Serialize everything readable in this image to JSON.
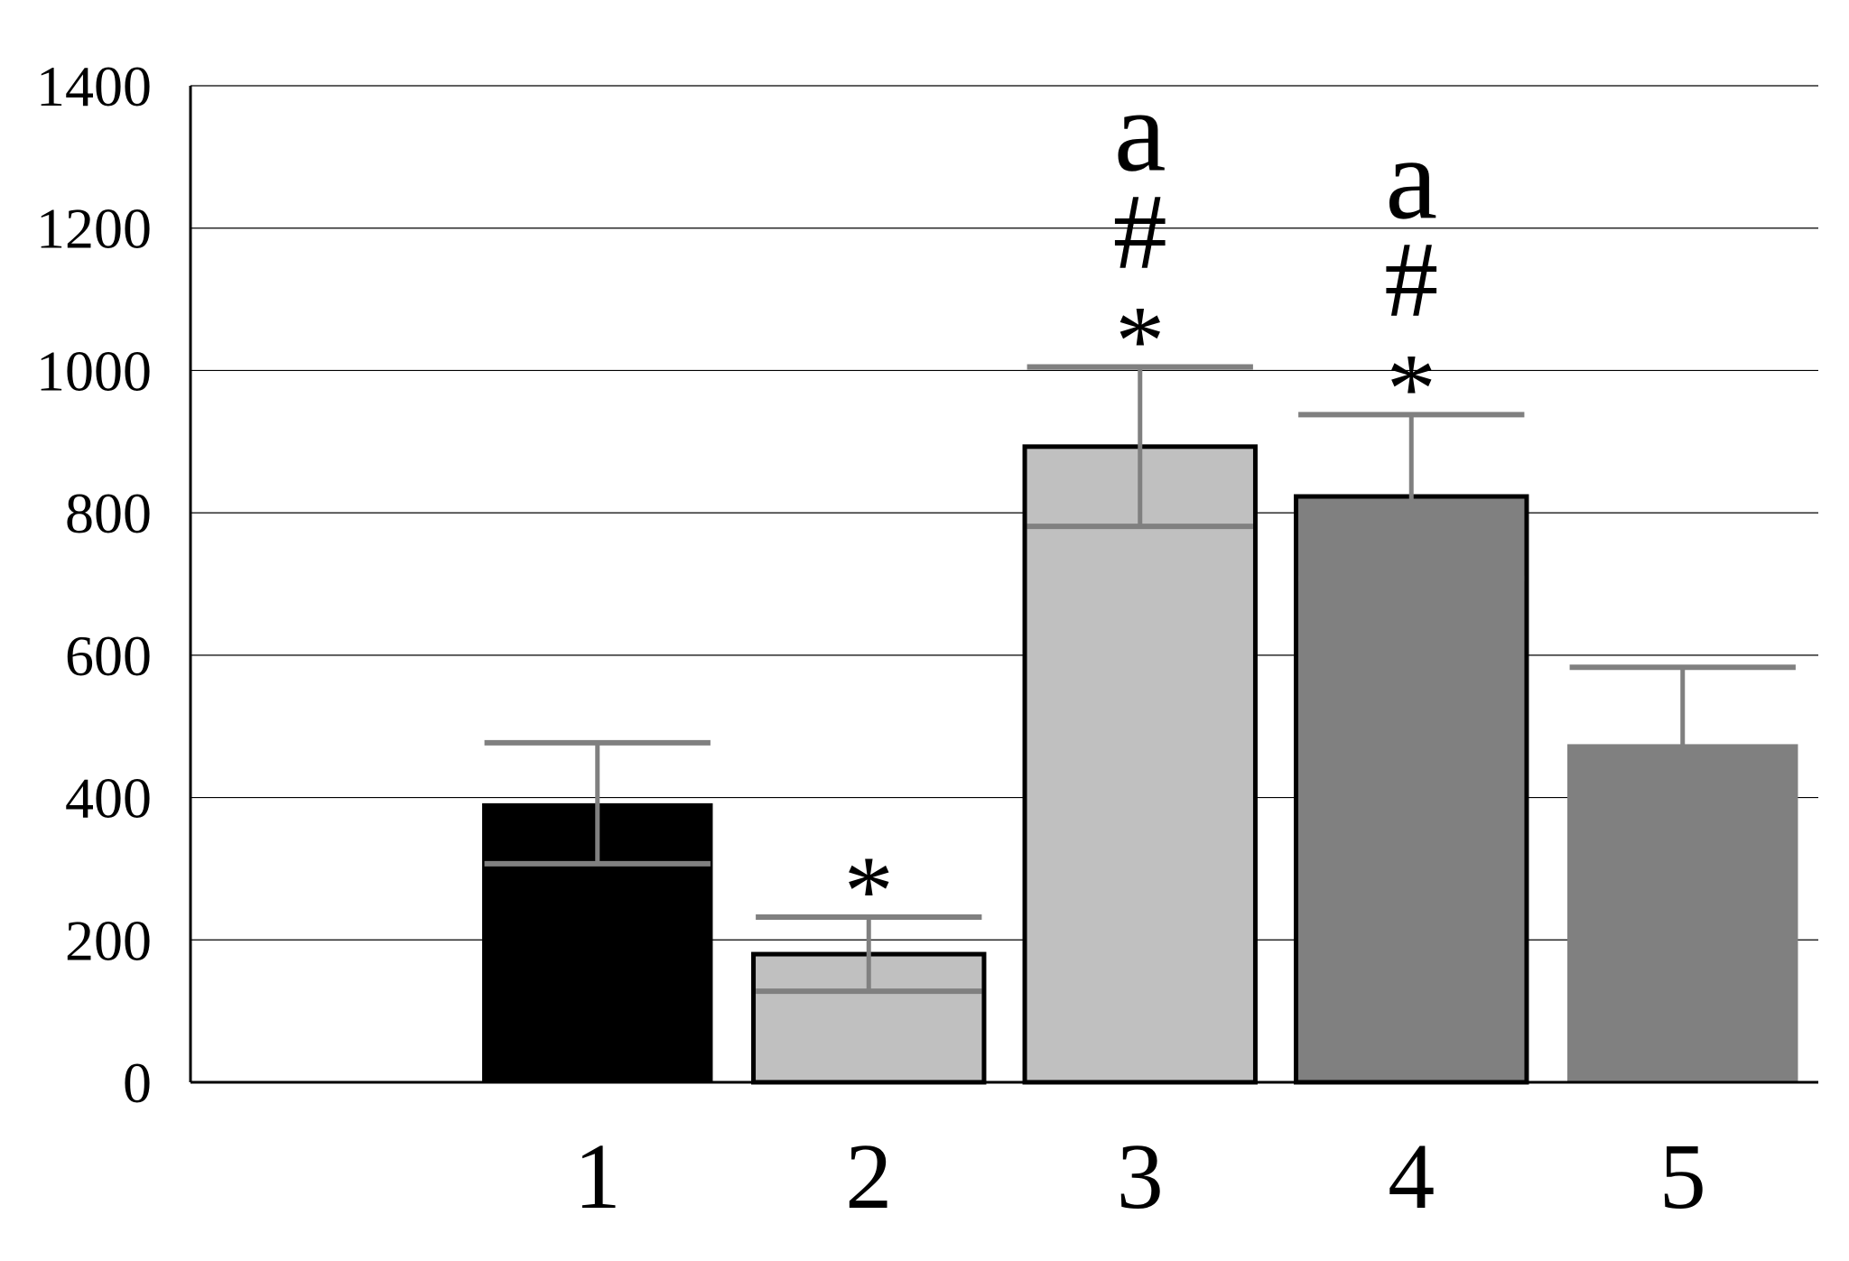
{
  "chart_data": {
    "type": "bar",
    "title": "",
    "xlabel": "",
    "ylabel": "",
    "ylim": [
      0,
      1400
    ],
    "yticks": [
      0,
      200,
      400,
      600,
      800,
      1000,
      1200,
      1400
    ],
    "grid": true,
    "legend": "none",
    "categories": [
      "",
      "1",
      "2",
      "3",
      "4",
      "5"
    ],
    "values": [
      null,
      392,
      180,
      893,
      823,
      475
    ],
    "errors": [
      null,
      85,
      52,
      112,
      115,
      108
    ],
    "annotations": [
      [],
      [],
      [
        "*"
      ],
      [
        "*",
        "#",
        "a"
      ],
      [
        "*",
        "#",
        "a"
      ],
      []
    ],
    "bar_colors": [
      "",
      "#000000",
      "#c0c0c0",
      "#c0c0c0",
      "#808080",
      "#808080"
    ],
    "bar_outlined": [
      false,
      false,
      true,
      true,
      true,
      false
    ],
    "error_bar_color": "#808080"
  }
}
